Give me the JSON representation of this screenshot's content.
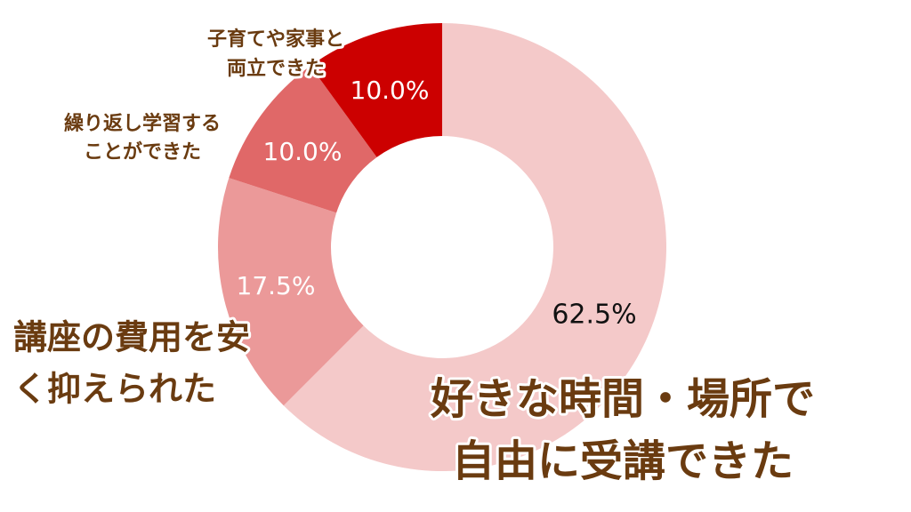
{
  "chart_data": {
    "type": "donut",
    "categories": [
      [
        "好きな時間・場所で",
        "自由に受講できた"
      ],
      [
        "講座の費用を安",
        "く抑えられた"
      ],
      [
        "繰り返し学習する",
        "ことができた"
      ],
      [
        "子育てや家事と",
        "両立できた"
      ]
    ],
    "values": [
      62.5,
      17.5,
      10,
      10
    ],
    "value_labels": [
      "62.5%",
      "17.5%",
      "10.0%",
      "10.0%"
    ],
    "colors": [
      "#f4c9c9",
      "#eb9999",
      "#e06868",
      "#cc0000"
    ],
    "value_label_colors": [
      "#111111",
      "#ffffff",
      "#ffffff",
      "#ffffff"
    ]
  }
}
